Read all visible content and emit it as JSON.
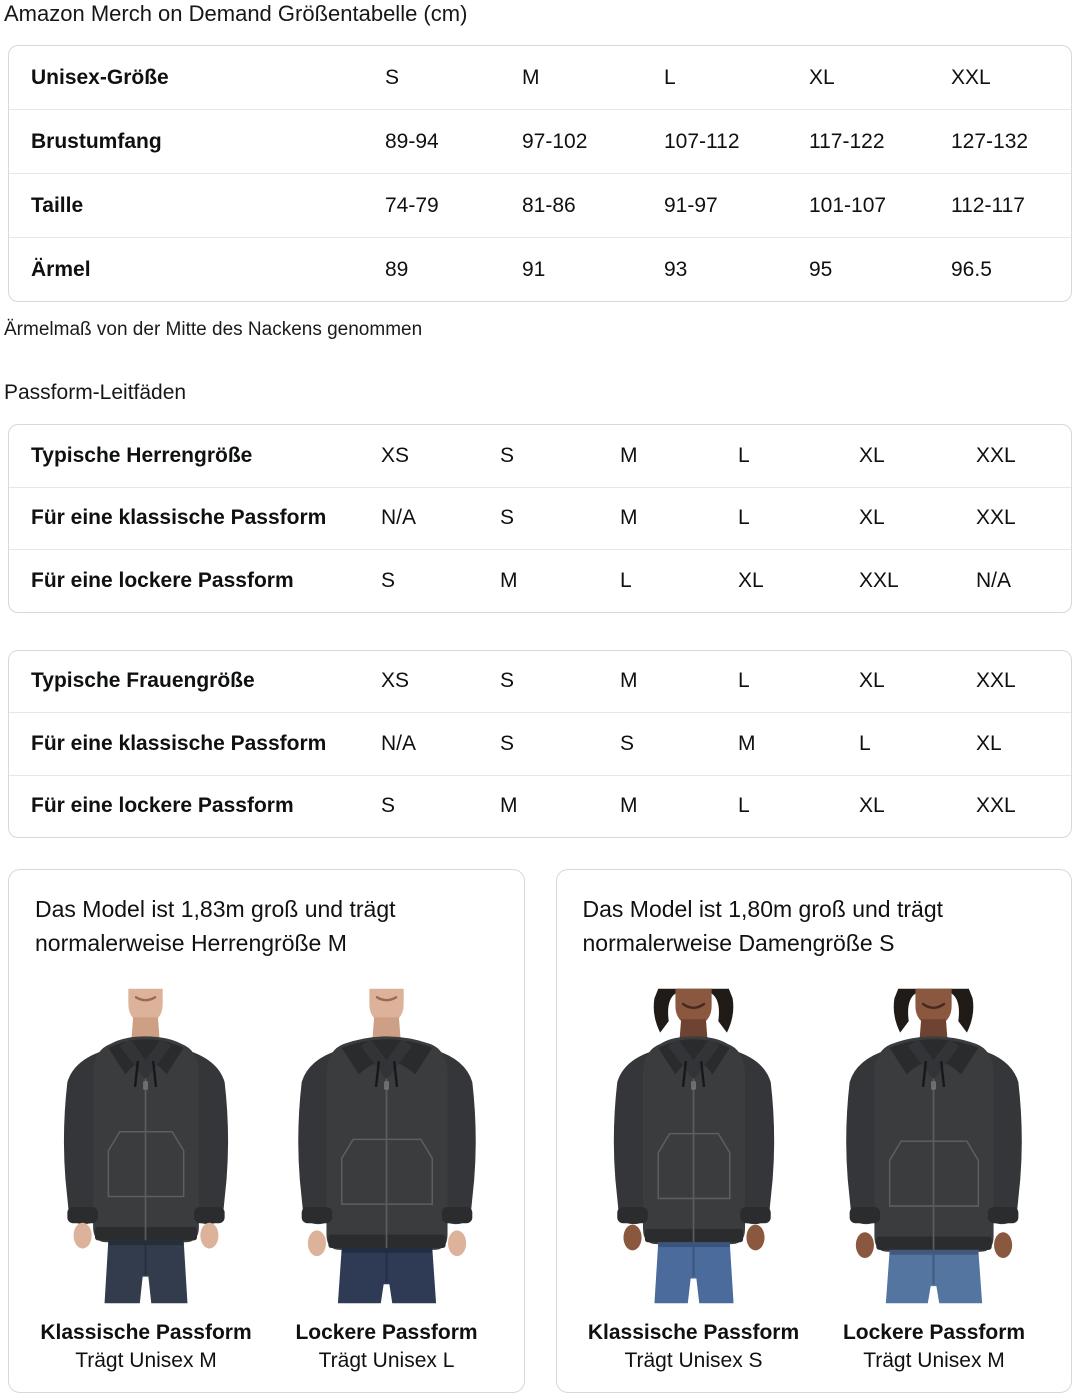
{
  "title": "Amazon Merch on Demand Größentabelle (cm)",
  "size_table": {
    "header_label": "Unisex-Größe",
    "header_sizes": [
      "S",
      "M",
      "L",
      "XL",
      "XXL"
    ],
    "rows": [
      {
        "label": "Brustumfang",
        "values": [
          "89-94",
          "97-102",
          "107-112",
          "117-122",
          "127-132"
        ]
      },
      {
        "label": "Taille",
        "values": [
          "74-79",
          "81-86",
          "91-97",
          "101-107",
          "112-117"
        ]
      },
      {
        "label": "Ärmel",
        "values": [
          "89",
          "91",
          "93",
          "95",
          "96.5"
        ]
      }
    ],
    "footnote": "Ärmelmaß von der Mitte des Nackens genommen"
  },
  "fit_guides": {
    "heading": "Passform-Leitfäden",
    "tables": [
      {
        "rows": [
          {
            "label": "Typische Herrengröße",
            "values": [
              "XS",
              "S",
              "M",
              "L",
              "XL",
              "XXL"
            ]
          },
          {
            "label": "Für eine klassische Passform",
            "values": [
              "N/A",
              "S",
              "M",
              "L",
              "XL",
              "XXL"
            ]
          },
          {
            "label": "Für eine lockere Passform",
            "values": [
              "S",
              "M",
              "L",
              "XL",
              "XXL",
              "N/A"
            ]
          }
        ]
      },
      {
        "rows": [
          {
            "label": "Typische Frauengröße",
            "values": [
              "XS",
              "S",
              "M",
              "L",
              "XL",
              "XXL"
            ]
          },
          {
            "label": "Für eine klassische Passform",
            "values": [
              "N/A",
              "S",
              "S",
              "M",
              "L",
              "XL"
            ]
          },
          {
            "label": "Für eine lockere Passform",
            "values": [
              "S",
              "M",
              "M",
              "L",
              "XL",
              "XXL"
            ]
          }
        ]
      }
    ]
  },
  "model_cards": [
    {
      "description": "Das Model ist 1,83m groß und trägt normalerweise Herrengröße M",
      "models": [
        {
          "fit_label": "Klassische Passform",
          "size_label": "Trägt Unisex M"
        },
        {
          "fit_label": "Lockere Passform",
          "size_label": "Trägt Unisex L"
        }
      ]
    },
    {
      "description": "Das Model ist 1,80m groß und trägt normalerweise Damengröße S",
      "models": [
        {
          "fit_label": "Klassische Passform",
          "size_label": "Trägt Unisex S"
        },
        {
          "fit_label": "Lockere Passform",
          "size_label": "Trägt Unisex M"
        }
      ]
    }
  ],
  "colors": {
    "text": "#0f1111",
    "table_border": "#d5d9d9",
    "row_divider": "#e7e7e7",
    "hoodie": "#3b3c3e",
    "jeans_men_dark": "#333c4c",
    "jeans_women_blue": "#4b6b9d"
  }
}
